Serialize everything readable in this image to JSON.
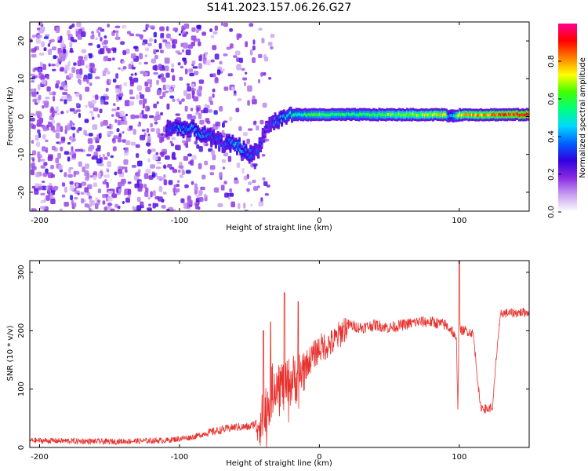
{
  "figure_title": "S141.2023.157.06.26.G27",
  "chart_data": [
    {
      "type": "heatmap",
      "xlabel": "Height of straight line (km)",
      "ylabel": "Frequency (Hz)",
      "xlim": [
        -207,
        150
      ],
      "ylim": [
        -25,
        25
      ],
      "x_ticks": [
        -200,
        -100,
        0,
        100
      ],
      "y_ticks": [
        -20,
        -10,
        0,
        10,
        20
      ],
      "colorbar": {
        "label": "Normalized spectral amplitude",
        "range": [
          0,
          1
        ],
        "ticks": [
          "0.0",
          "0.2",
          "0.4",
          "0.6",
          "0.8"
        ],
        "colormap": [
          "#ffffff",
          "#c8a0f0",
          "#8a2be2",
          "#3000e0",
          "#0060ff",
          "#00d8ff",
          "#00ff80",
          "#40ff00",
          "#ffff00",
          "#ff8000",
          "#ff0000",
          "#ff0090"
        ]
      },
      "trace": {
        "x": [
          -110,
          -100,
          -90,
          -80,
          -70,
          -60,
          -50,
          -45,
          -40,
          -35,
          -30,
          -25,
          -20,
          -10,
          0,
          20,
          40,
          60,
          80,
          90,
          92,
          100,
          120,
          150
        ],
        "frequency": [
          -3,
          -3,
          -3.5,
          -5.5,
          -7,
          -7.5,
          -10,
          -9,
          -4,
          -1.5,
          -1,
          0,
          0.5,
          0.5,
          0.5,
          0.5,
          0.5,
          0.5,
          0.5,
          0.5,
          0,
          0.5,
          0.5,
          0.5
        ],
        "amplitude": [
          0.3,
          0.4,
          0.4,
          0.35,
          0.3,
          0.45,
          0.35,
          0.3,
          0.25,
          0.3,
          0.35,
          0.45,
          0.5,
          0.55,
          0.6,
          0.55,
          0.6,
          0.65,
          0.7,
          0.75,
          0.3,
          0.75,
          0.8,
          0.9
        ]
      },
      "noise_region_x": [
        -207,
        -35
      ]
    },
    {
      "type": "line",
      "xlabel": "Height of straight line (km)",
      "ylabel": "SNR (10 * v/v)",
      "xlim": [
        -207,
        150
      ],
      "ylim": [
        0,
        320
      ],
      "x_ticks": [
        -200,
        -100,
        0,
        100
      ],
      "y_ticks": [
        0,
        100,
        200,
        300
      ],
      "series": [
        {
          "color": "#e8302c",
          "x": [
            -207,
            -150,
            -110,
            -100,
            -90,
            -80,
            -70,
            -60,
            -50,
            -40,
            -35,
            -30,
            -25,
            -20,
            -15,
            -10,
            0,
            10,
            20,
            30,
            40,
            50,
            60,
            70,
            80,
            90,
            95,
            98,
            99,
            100,
            101,
            105,
            110,
            115,
            120,
            124,
            126,
            128,
            130,
            135,
            150
          ],
          "y": [
            12,
            10,
            12,
            15,
            18,
            25,
            30,
            35,
            35,
            50,
            90,
            120,
            100,
            115,
            120,
            140,
            170,
            180,
            210,
            205,
            210,
            205,
            210,
            215,
            215,
            210,
            200,
            180,
            70,
            210,
            200,
            200,
            195,
            70,
            65,
            70,
            140,
            195,
            230,
            230,
            232
          ],
          "spikes": [
            {
              "x": -40,
              "y": 200
            },
            {
              "x": -35,
              "y": 215
            },
            {
              "x": -25,
              "y": 265
            },
            {
              "x": -15,
              "y": 250
            },
            {
              "x": 100,
              "y": 320
            }
          ]
        }
      ]
    }
  ]
}
